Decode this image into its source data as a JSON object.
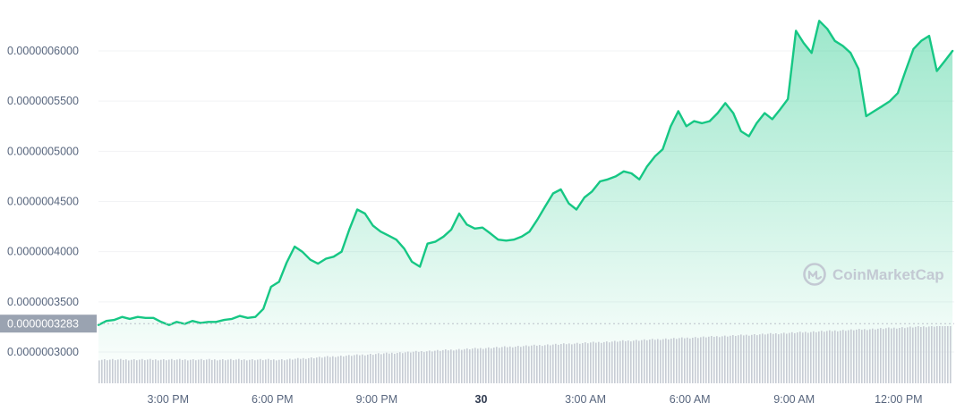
{
  "chart_data": {
    "type": "area",
    "title": "",
    "xlabel": "",
    "ylabel": "",
    "y_ticks": [
      "0.0000003000",
      "0.0000003500",
      "0.0000004000",
      "0.0000004500",
      "0.0000005000",
      "0.0000005500",
      "0.0000006000"
    ],
    "y_tick_values": [
      3e-07,
      3.5e-07,
      4e-07,
      4.5e-07,
      5e-07,
      5.5e-07,
      6e-07
    ],
    "ylim": [
      2.81e-07,
      6.39e-07
    ],
    "x_ticks": [
      {
        "label": "3:00 PM",
        "hour": 15,
        "bold": false
      },
      {
        "label": "6:00 PM",
        "hour": 18,
        "bold": false
      },
      {
        "label": "9:00 PM",
        "hour": 21,
        "bold": false
      },
      {
        "label": "30",
        "hour": 24,
        "bold": true
      },
      {
        "label": "3:00 AM",
        "hour": 27,
        "bold": false
      },
      {
        "label": "6:00 AM",
        "hour": 30,
        "bold": false
      },
      {
        "label": "9:00 AM",
        "hour": 33,
        "bold": false
      },
      {
        "label": "12:00 PM",
        "hour": 36,
        "bold": false
      }
    ],
    "xlim_hours": [
      13.0,
      37.6
    ],
    "reference_line": {
      "label": "0.0000003283",
      "value": 3.283e-07
    },
    "series": [
      {
        "hours": [
          13.0,
          13.23,
          13.45,
          13.68,
          13.9,
          14.13,
          14.35,
          14.58,
          14.8,
          15.03,
          15.25,
          15.48,
          15.7,
          15.93,
          16.16,
          16.38,
          16.61,
          16.84,
          17.06,
          17.29,
          17.51,
          17.74,
          17.96,
          18.19,
          18.41,
          18.64,
          18.86,
          19.09,
          19.31,
          19.54,
          19.76,
          19.99,
          20.21,
          20.44,
          20.66,
          20.89,
          21.11,
          21.34,
          21.56,
          21.79,
          22.01,
          22.24,
          22.46,
          22.69,
          22.92,
          23.14,
          23.37,
          23.59,
          23.82,
          24.04,
          24.27,
          24.49,
          24.72,
          24.94,
          25.17,
          25.39,
          25.62,
          25.84,
          26.07,
          26.29,
          26.52,
          26.74,
          26.97,
          27.19,
          27.42,
          27.64,
          27.87,
          28.1,
          28.32,
          28.55,
          28.77,
          29.0,
          29.22,
          29.45,
          29.67,
          29.9,
          30.12,
          30.35,
          30.57,
          30.8,
          31.02,
          31.25,
          31.47,
          31.7,
          31.92,
          32.15,
          32.37,
          32.6,
          32.82,
          33.05,
          33.27,
          33.5,
          33.72,
          33.95,
          34.17,
          34.4,
          34.62,
          34.85,
          35.07,
          35.3,
          35.53,
          35.75,
          35.98,
          36.2,
          36.43,
          36.65,
          36.88,
          37.1,
          37.33,
          37.55
        ],
        "values": [
          3.27e-07,
          3.31e-07,
          3.32e-07,
          3.35e-07,
          3.33e-07,
          3.35e-07,
          3.34e-07,
          3.34e-07,
          3.3e-07,
          3.27e-07,
          3.3e-07,
          3.28e-07,
          3.31e-07,
          3.29e-07,
          3.3e-07,
          3.3e-07,
          3.32e-07,
          3.33e-07,
          3.36e-07,
          3.34e-07,
          3.35e-07,
          3.43e-07,
          3.65e-07,
          3.7e-07,
          3.89e-07,
          4.05e-07,
          4e-07,
          3.92e-07,
          3.88e-07,
          3.93e-07,
          3.95e-07,
          4e-07,
          4.22e-07,
          4.42e-07,
          4.38e-07,
          4.26e-07,
          4.2e-07,
          4.16e-07,
          4.12e-07,
          4.03e-07,
          3.9e-07,
          3.85e-07,
          4.08e-07,
          4.1e-07,
          4.15e-07,
          4.22e-07,
          4.38e-07,
          4.27e-07,
          4.23e-07,
          4.24e-07,
          4.18e-07,
          4.12e-07,
          4.11e-07,
          4.12e-07,
          4.15e-07,
          4.2e-07,
          4.32e-07,
          4.45e-07,
          4.58e-07,
          4.62e-07,
          4.48e-07,
          4.42e-07,
          4.54e-07,
          4.6e-07,
          4.7e-07,
          4.72e-07,
          4.75e-07,
          4.8e-07,
          4.78e-07,
          4.72e-07,
          4.85e-07,
          4.95e-07,
          5.02e-07,
          5.25e-07,
          5.4e-07,
          5.25e-07,
          5.3e-07,
          5.28e-07,
          5.3e-07,
          5.38e-07,
          5.48e-07,
          5.38e-07,
          5.2e-07,
          5.15e-07,
          5.28e-07,
          5.38e-07,
          5.32e-07,
          5.42e-07,
          5.52e-07,
          6.2e-07,
          6.08e-07,
          5.98e-07,
          6.3e-07,
          6.22e-07,
          6.1e-07,
          6.05e-07,
          5.98e-07,
          5.82e-07,
          5.35e-07,
          5.4e-07,
          5.45e-07,
          5.5e-07,
          5.58e-07,
          5.8e-07,
          6.02e-07,
          6.1e-07,
          6.15e-07,
          5.8e-07,
          5.9e-07,
          6e-07
        ]
      }
    ],
    "volume": {
      "hours_range": [
        13.0,
        37.6
      ],
      "relative_start": 0.4,
      "relative_end": 1.0
    },
    "grid": true,
    "legend": "none"
  },
  "watermark": {
    "text": "CoinMarketCap",
    "icon": "coinmarketcap-logo-icon"
  },
  "colors": {
    "line": "#16c784",
    "area_top": "#16c784",
    "area_bottom": "#ffffff",
    "grid": "#f2f3f5",
    "reference_line": "#b8bfca",
    "reference_label_bg": "#9aa3b1",
    "volume_bar": "#c7ccd4",
    "axis_text": "#58667e"
  }
}
